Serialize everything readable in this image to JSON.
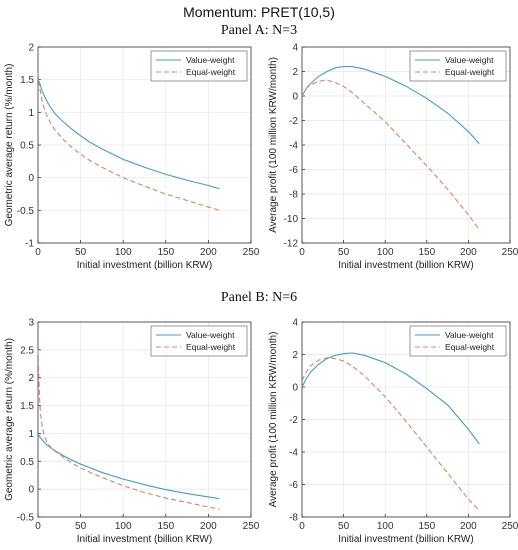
{
  "figure": {
    "title": "Momentum: PRET(10,5)",
    "panel_a_title": "Panel A: N=3",
    "panel_b_title": "Panel B: N=6"
  },
  "colors": {
    "value_weight": "#3f9fcc",
    "equal_weight": "#e0835e",
    "axis": "#333333",
    "grid": "#e6e6e6"
  },
  "chart_data": [
    {
      "id": "panel-a-left",
      "type": "line",
      "panel": "Panel A: N=3",
      "xlabel": "Initial investment (billion KRW)",
      "ylabel": "Geometric average return (%/month)",
      "xlim": [
        0,
        250
      ],
      "ylim": [
        -1,
        2
      ],
      "xticks": [
        0,
        50,
        100,
        150,
        200,
        250
      ],
      "yticks": [
        -1,
        -0.5,
        0,
        0.5,
        1,
        1.5,
        2
      ],
      "grid": true,
      "legend": "top-right",
      "series": [
        {
          "name": "Value-weight",
          "style": "solid",
          "x": [
            0,
            2,
            5,
            10,
            15,
            20,
            30,
            40,
            50,
            60,
            75,
            100,
            125,
            150,
            175,
            200,
            213
          ],
          "y": [
            1.5,
            1.45,
            1.32,
            1.18,
            1.07,
            0.98,
            0.85,
            0.74,
            0.64,
            0.55,
            0.44,
            0.28,
            0.16,
            0.05,
            -0.04,
            -0.12,
            -0.17
          ]
        },
        {
          "name": "Equal-weight",
          "style": "dashed",
          "x": [
            0,
            2,
            5,
            10,
            15,
            20,
            30,
            40,
            50,
            60,
            75,
            100,
            125,
            150,
            175,
            200,
            213
          ],
          "y": [
            1.6,
            1.38,
            1.15,
            0.96,
            0.83,
            0.73,
            0.58,
            0.46,
            0.36,
            0.27,
            0.16,
            0.0,
            -0.13,
            -0.25,
            -0.35,
            -0.45,
            -0.5
          ]
        }
      ]
    },
    {
      "id": "panel-a-right",
      "type": "line",
      "panel": "Panel A: N=3",
      "xlabel": "Initial investment (billion KRW)",
      "ylabel": "Average profit (100 million KRW/month)",
      "xlim": [
        0,
        250
      ],
      "ylim": [
        -12,
        4
      ],
      "xticks": [
        0,
        50,
        100,
        150,
        200,
        250
      ],
      "yticks": [
        -12,
        -10,
        -8,
        -6,
        -4,
        -2,
        0,
        2,
        4
      ],
      "grid": true,
      "legend": "top-right",
      "series": [
        {
          "name": "Value-weight",
          "style": "solid",
          "x": [
            0,
            5,
            10,
            20,
            30,
            40,
            50,
            60,
            75,
            100,
            125,
            150,
            175,
            200,
            213
          ],
          "y": [
            0.0,
            0.6,
            1.0,
            1.6,
            2.0,
            2.3,
            2.4,
            2.4,
            2.2,
            1.6,
            0.8,
            -0.2,
            -1.4,
            -2.9,
            -3.9
          ]
        },
        {
          "name": "Equal-weight",
          "style": "dashed",
          "x": [
            0,
            5,
            10,
            20,
            30,
            40,
            50,
            60,
            75,
            100,
            125,
            150,
            175,
            200,
            213
          ],
          "y": [
            0.0,
            0.6,
            0.9,
            1.2,
            1.3,
            1.1,
            0.8,
            0.3,
            -0.6,
            -2.1,
            -3.9,
            -5.7,
            -7.6,
            -9.7,
            -10.9
          ]
        }
      ]
    },
    {
      "id": "panel-b-left",
      "type": "line",
      "panel": "Panel B: N=6",
      "xlabel": "Initial investment (billion KRW)",
      "ylabel": "Geometric average return (%/month)",
      "xlim": [
        0,
        250
      ],
      "ylim": [
        -0.5,
        3
      ],
      "xticks": [
        0,
        50,
        100,
        150,
        200,
        250
      ],
      "yticks": [
        -0.5,
        0,
        0.5,
        1,
        1.5,
        2,
        2.5,
        3
      ],
      "grid": true,
      "legend": "top-right",
      "series": [
        {
          "name": "Value-weight",
          "style": "solid",
          "x": [
            0,
            2,
            5,
            10,
            15,
            20,
            30,
            40,
            50,
            60,
            75,
            100,
            125,
            150,
            175,
            200,
            213
          ],
          "y": [
            1.0,
            0.94,
            0.88,
            0.8,
            0.74,
            0.69,
            0.6,
            0.52,
            0.45,
            0.39,
            0.3,
            0.18,
            0.08,
            -0.01,
            -0.08,
            -0.14,
            -0.17
          ]
        },
        {
          "name": "Equal-weight",
          "style": "dashed",
          "x": [
            0,
            1,
            2,
            3,
            5,
            7,
            10,
            15,
            20,
            30,
            40,
            50,
            60,
            75,
            100,
            125,
            150,
            175,
            200,
            213
          ],
          "y": [
            2.5,
            2.0,
            1.6,
            1.35,
            1.12,
            0.98,
            0.86,
            0.75,
            0.68,
            0.57,
            0.47,
            0.38,
            0.31,
            0.21,
            0.06,
            -0.06,
            -0.16,
            -0.24,
            -0.32,
            -0.36
          ]
        }
      ]
    },
    {
      "id": "panel-b-right",
      "type": "line",
      "panel": "Panel B: N=6",
      "xlabel": "Initial investment (billion KRW)",
      "ylabel": "Average profit (100 million KRW/month)",
      "xlim": [
        0,
        250
      ],
      "ylim": [
        -8,
        4
      ],
      "xticks": [
        0,
        50,
        100,
        150,
        200,
        250
      ],
      "yticks": [
        -8,
        -6,
        -4,
        -2,
        0,
        2,
        4
      ],
      "grid": true,
      "legend": "top-right",
      "series": [
        {
          "name": "Value-weight",
          "style": "solid",
          "x": [
            0,
            5,
            10,
            20,
            30,
            40,
            50,
            60,
            75,
            100,
            125,
            150,
            175,
            200,
            213
          ],
          "y": [
            0.0,
            0.5,
            0.9,
            1.4,
            1.75,
            1.95,
            2.05,
            2.1,
            1.95,
            1.5,
            0.8,
            -0.1,
            -1.1,
            -2.6,
            -3.5
          ]
        },
        {
          "name": "Equal-weight",
          "style": "dashed",
          "x": [
            0,
            5,
            10,
            20,
            30,
            40,
            50,
            60,
            75,
            100,
            125,
            150,
            175,
            200,
            213
          ],
          "y": [
            0.4,
            0.9,
            1.3,
            1.65,
            1.8,
            1.75,
            1.6,
            1.3,
            0.7,
            -0.6,
            -2.1,
            -3.7,
            -5.3,
            -6.9,
            -7.6
          ]
        }
      ]
    }
  ]
}
